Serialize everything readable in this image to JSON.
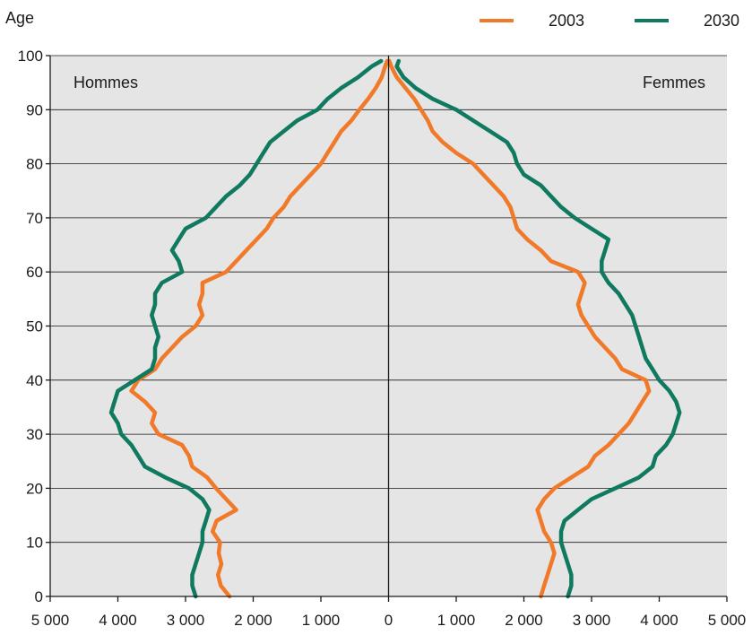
{
  "chart_data": {
    "type": "line",
    "title": "",
    "ylabel": "Age",
    "xlabel": "",
    "xlim": [
      -5000,
      5000
    ],
    "ylim": [
      0,
      100
    ],
    "x_ticks": [
      -5000,
      -4000,
      -3000,
      -2000,
      -1000,
      0,
      1000,
      2000,
      3000,
      4000,
      5000
    ],
    "x_tick_labels": [
      "5 000",
      "4 000",
      "3 000",
      "2 000",
      "1 000",
      "0",
      "1 000",
      "2 000",
      "3 000",
      "4 000",
      "5 000"
    ],
    "y_ticks": [
      0,
      10,
      20,
      30,
      40,
      50,
      60,
      70,
      80,
      90,
      100
    ],
    "y_tick_labels": [
      "0",
      "10",
      "20",
      "30",
      "40",
      "50",
      "60",
      "70",
      "80",
      "90",
      "100"
    ],
    "grid": true,
    "legend_position": "top-right",
    "panel_labels": {
      "left": "Hommes",
      "right": "Femmes"
    },
    "ages": [
      0,
      2,
      4,
      6,
      8,
      10,
      12,
      14,
      16,
      18,
      20,
      22,
      24,
      26,
      28,
      30,
      32,
      34,
      36,
      38,
      40,
      42,
      44,
      46,
      48,
      50,
      52,
      54,
      56,
      58,
      60,
      62,
      64,
      66,
      68,
      70,
      72,
      74,
      76,
      78,
      80,
      82,
      84,
      86,
      88,
      90,
      92,
      94,
      96,
      98,
      99
    ],
    "series": [
      {
        "name": "2003",
        "color": "#f07a2a",
        "men": [
          2350,
          2480,
          2520,
          2470,
          2510,
          2490,
          2600,
          2540,
          2250,
          2400,
          2550,
          2680,
          2900,
          2950,
          3050,
          3400,
          3500,
          3450,
          3600,
          3800,
          3700,
          3450,
          3350,
          3200,
          3050,
          2850,
          2750,
          2800,
          2750,
          2750,
          2400,
          2250,
          2100,
          1950,
          1800,
          1700,
          1550,
          1450,
          1300,
          1150,
          1000,
          900,
          800,
          700,
          550,
          430,
          300,
          190,
          100,
          50,
          20
        ],
        "women": [
          2250,
          2300,
          2350,
          2400,
          2450,
          2400,
          2300,
          2250,
          2200,
          2300,
          2450,
          2700,
          2950,
          3050,
          3250,
          3400,
          3550,
          3650,
          3750,
          3850,
          3800,
          3450,
          3350,
          3200,
          3050,
          2950,
          2850,
          2800,
          2850,
          2900,
          2800,
          2400,
          2250,
          2050,
          1900,
          1850,
          1800,
          1700,
          1550,
          1400,
          1250,
          1000,
          800,
          650,
          580,
          480,
          380,
          250,
          120,
          40,
          10
        ]
      },
      {
        "name": "2030",
        "color": "#0f7a5f",
        "men": [
          2850,
          2900,
          2900,
          2850,
          2800,
          2750,
          2750,
          2700,
          2650,
          2750,
          2950,
          3300,
          3600,
          3700,
          3800,
          3950,
          4000,
          4100,
          4050,
          4000,
          3750,
          3500,
          3450,
          3450,
          3400,
          3450,
          3500,
          3450,
          3450,
          3350,
          3050,
          3100,
          3200,
          3100,
          3000,
          2700,
          2550,
          2400,
          2200,
          2050,
          1950,
          1850,
          1750,
          1550,
          1350,
          1050,
          900,
          700,
          450,
          250,
          110
        ],
        "women": [
          2650,
          2700,
          2700,
          2650,
          2600,
          2550,
          2550,
          2600,
          2800,
          3000,
          3350,
          3700,
          3900,
          3950,
          4100,
          4200,
          4250,
          4300,
          4250,
          4150,
          4000,
          3900,
          3800,
          3750,
          3700,
          3650,
          3600,
          3500,
          3400,
          3250,
          3150,
          3150,
          3200,
          3250,
          3000,
          2750,
          2550,
          2400,
          2250,
          2000,
          1900,
          1850,
          1750,
          1500,
          1250,
          1000,
          650,
          400,
          220,
          120,
          150
        ]
      }
    ]
  }
}
